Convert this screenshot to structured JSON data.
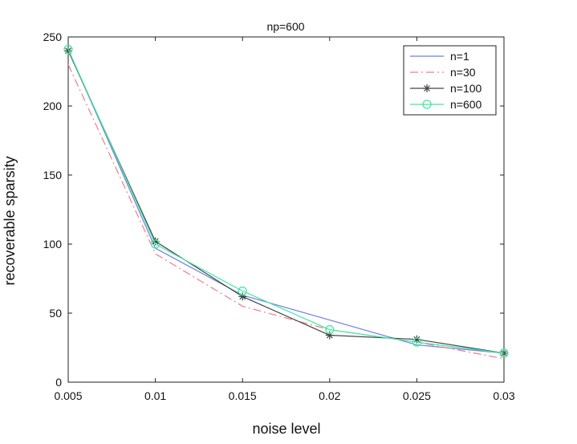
{
  "chart_data": {
    "type": "line",
    "title": "np=600",
    "xlabel": "noise level",
    "ylabel": "recoverable sparsity",
    "x": [
      0.005,
      0.01,
      0.015,
      0.02,
      0.025,
      0.03
    ],
    "x_tick_labels": [
      "0.005",
      "0.01",
      "0.015",
      "0.02",
      "0.025",
      "0.03"
    ],
    "y_ticks": [
      0,
      50,
      100,
      150,
      200,
      250
    ],
    "y_tick_labels": [
      "0",
      "50",
      "100",
      "150",
      "200",
      "250"
    ],
    "xlim": [
      0.005,
      0.03
    ],
    "ylim": [
      0,
      250
    ],
    "grid": false,
    "legend_position": "top-right",
    "series": [
      {
        "name": "n=1",
        "values": [
          241,
          97,
          63,
          45,
          27,
          21
        ],
        "color": "#6f7ee8",
        "dash": "solid",
        "marker": "none"
      },
      {
        "name": "n=30",
        "values": [
          230,
          93,
          55,
          38,
          29,
          17
        ],
        "color": "#f07d8a",
        "dash": "dashdot",
        "marker": "none"
      },
      {
        "name": "n=100",
        "values": [
          240,
          102,
          62,
          34,
          31,
          21
        ],
        "color": "#444444",
        "dash": "solid",
        "marker": "star"
      },
      {
        "name": "n=600",
        "values": [
          241,
          100,
          66,
          38,
          29,
          21
        ],
        "color": "#3fe8a0",
        "dash": "solid",
        "marker": "circle"
      }
    ]
  }
}
